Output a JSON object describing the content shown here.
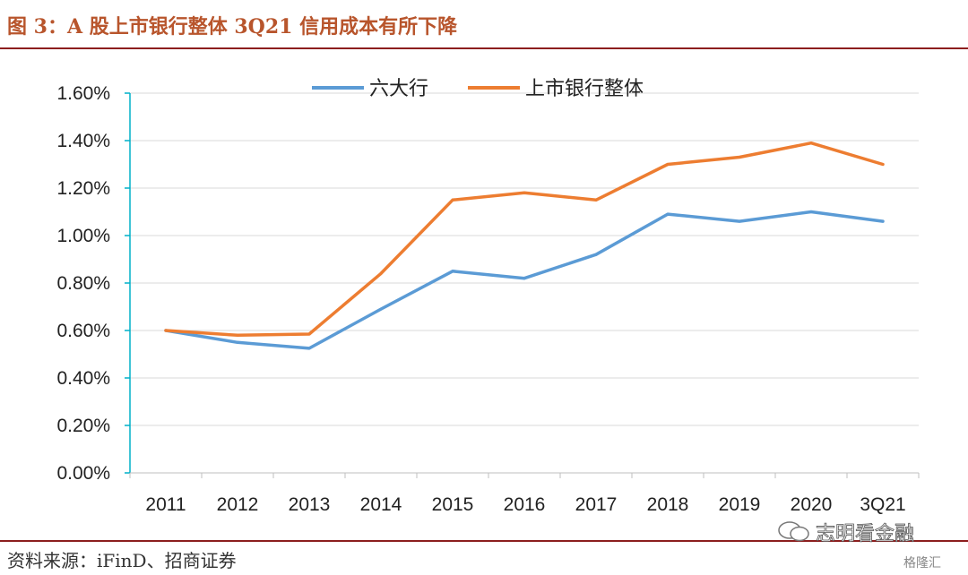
{
  "page": {
    "title": "图 3：A 股上市银行整体 3Q21 信用成本有所下降",
    "source": "资料来源：iFinD、招商证券",
    "watermark": "志明看金融",
    "logo": "格隆汇"
  },
  "colors": {
    "title": "#b8552c",
    "rule": "#8c1e1e",
    "series1": "#5b9bd5",
    "series2": "#ed7d31",
    "axis": "#00b0c8",
    "grid": "#d9d9d9"
  },
  "chart_data": {
    "type": "line",
    "title": "",
    "xlabel": "",
    "ylabel": "",
    "categories": [
      "2011",
      "2012",
      "2013",
      "2014",
      "2015",
      "2016",
      "2017",
      "2018",
      "2019",
      "2020",
      "3Q21"
    ],
    "yticks": [
      "0.00%",
      "0.20%",
      "0.40%",
      "0.60%",
      "0.80%",
      "1.00%",
      "1.20%",
      "1.40%",
      "1.60%"
    ],
    "ylim": [
      0,
      1.6
    ],
    "grid": true,
    "legend": "top-center",
    "series": [
      {
        "name": "六大行",
        "color": "#5b9bd5",
        "values": [
          0.6,
          0.55,
          0.525,
          0.69,
          0.85,
          0.82,
          0.92,
          1.09,
          1.06,
          1.1,
          1.06
        ]
      },
      {
        "name": "上市银行整体",
        "color": "#ed7d31",
        "values": [
          0.6,
          0.58,
          0.585,
          0.84,
          1.15,
          1.18,
          1.15,
          1.3,
          1.33,
          1.39,
          1.3
        ]
      }
    ]
  }
}
